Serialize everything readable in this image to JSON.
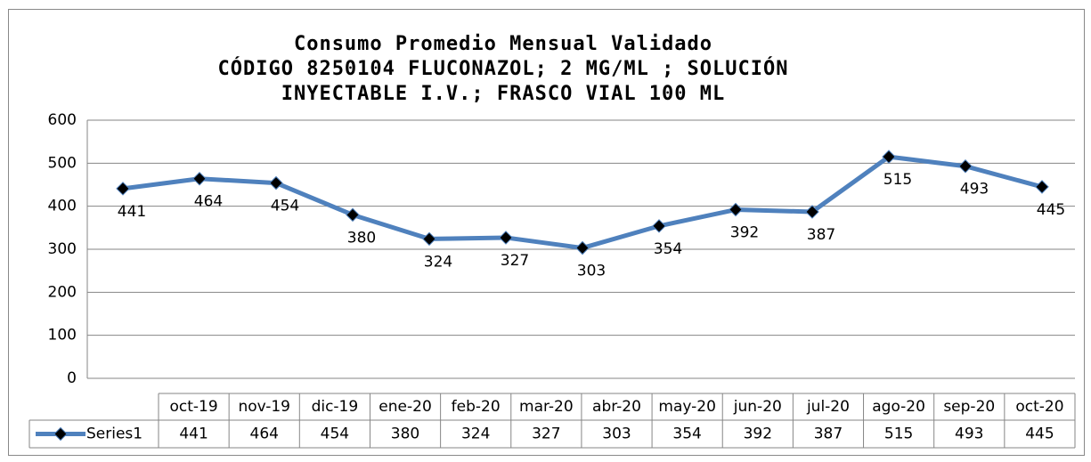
{
  "chart_data": {
    "type": "line",
    "title": [
      "Consumo Promedio Mensual Validado",
      "CÓDIGO 8250104 FLUCONAZOL; 2 MG/ML ; SOLUCIÓN",
      "INYECTABLE I.V.; FRASCO VIAL 100 ML"
    ],
    "categories": [
      "oct-19",
      "nov-19",
      "dic-19",
      "ene-20",
      "feb-20",
      "mar-20",
      "abr-20",
      "may-20",
      "jun-20",
      "jul-20",
      "ago-20",
      "sep-20",
      "oct-20"
    ],
    "series": [
      {
        "name": "Series1",
        "color": "#4f81bd",
        "values": [
          441,
          464,
          454,
          380,
          324,
          327,
          303,
          354,
          392,
          387,
          515,
          493,
          445
        ]
      }
    ],
    "ylim": [
      0,
      600
    ],
    "yticks": [
      0,
      100,
      200,
      300,
      400,
      500,
      600
    ],
    "grid": true,
    "data_table": true
  }
}
